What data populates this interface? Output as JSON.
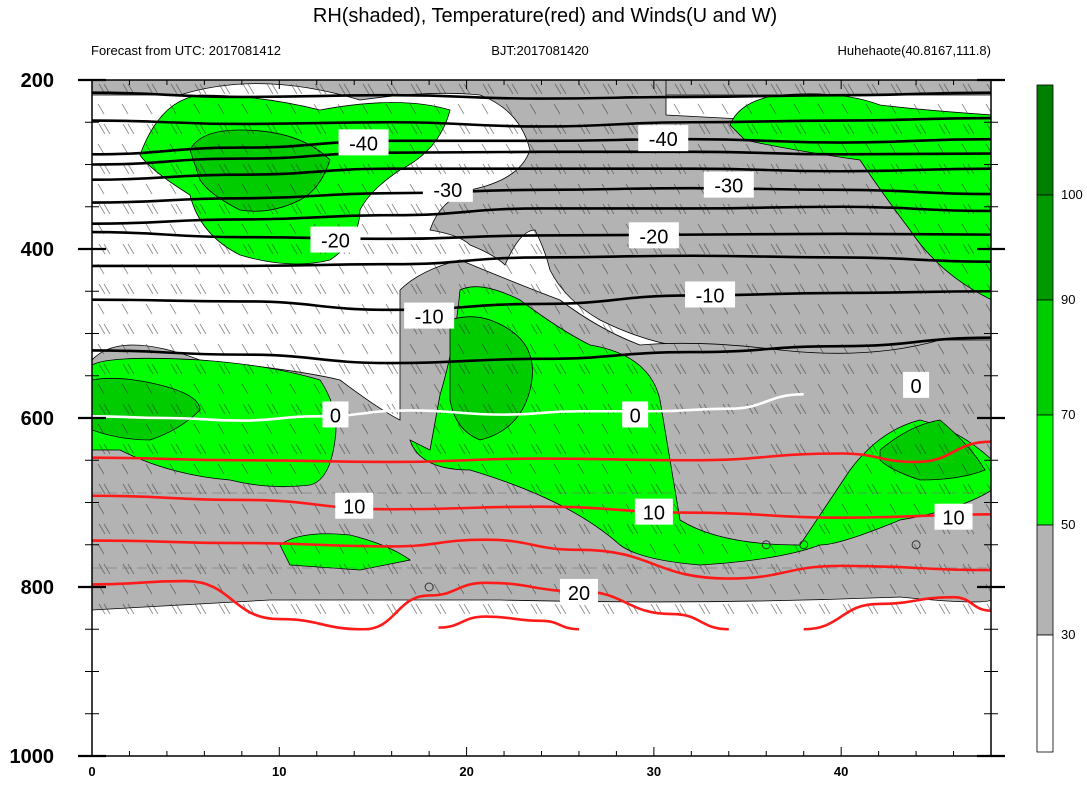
{
  "header": {
    "title": "RH(shaded), Temperature(red) and Winds(U and W)",
    "left_note": "Forecast from UTC: 2017081412",
    "center_note": "BJT:2017081420",
    "right_note": "Huhehaote(40.8167,111.8)"
  },
  "chart_data": {
    "type": "heatmap",
    "title": "RH(shaded), Temperature(red) and Winds(U and W)",
    "xlabel": "",
    "ylabel": "",
    "x_range": [
      0,
      48
    ],
    "y_range": [
      200,
      1000
    ],
    "y_reversed": true,
    "x_ticks": [
      0,
      10,
      20,
      30,
      40
    ],
    "y_ticks": [
      200,
      400,
      600,
      800,
      1000
    ],
    "colorbar": {
      "levels": [
        30,
        50,
        70,
        90,
        100
      ],
      "colors": [
        "#ffffff",
        "#b3b3b3",
        "#00ff00",
        "#00cc00",
        "#009900",
        "#007f00"
      ]
    },
    "temperature_labels": [
      {
        "text": "-40",
        "x": 14.5,
        "p": 275
      },
      {
        "text": "-40",
        "x": 30.5,
        "p": 270
      },
      {
        "text": "-30",
        "x": 19,
        "p": 330
      },
      {
        "text": "-30",
        "x": 34,
        "p": 325
      },
      {
        "text": "-20",
        "x": 13,
        "p": 390
      },
      {
        "text": "-20",
        "x": 30,
        "p": 385
      },
      {
        "text": "-10",
        "x": 18,
        "p": 480
      },
      {
        "text": "-10",
        "x": 33,
        "p": 455
      },
      {
        "text": "0",
        "x": 13,
        "p": 597
      },
      {
        "text": "0",
        "x": 29,
        "p": 597
      },
      {
        "text": "0",
        "x": 44,
        "p": 562
      },
      {
        "text": "10",
        "x": 14,
        "p": 705
      },
      {
        "text": "10",
        "x": 30,
        "p": 712
      },
      {
        "text": "10",
        "x": 46,
        "p": 718
      },
      {
        "text": "20",
        "x": 26,
        "p": 807
      }
    ],
    "isotherms_black": [
      {
        "value": -50,
        "x": [
          0,
          8,
          16,
          24,
          32,
          40,
          48
        ],
        "p": [
          215,
          220,
          218,
          222,
          220,
          218,
          215
        ]
      },
      {
        "value": -45,
        "x": [
          0,
          8,
          16,
          24,
          32,
          40,
          48
        ],
        "p": [
          248,
          252,
          250,
          255,
          250,
          248,
          245
        ]
      },
      {
        "value": -40,
        "x": [
          0,
          8,
          16,
          24,
          32,
          40,
          48
        ],
        "p": [
          288,
          280,
          272,
          272,
          270,
          274,
          270
        ]
      },
      {
        "value": -38,
        "x": [
          0,
          8,
          16,
          24,
          32,
          40,
          48
        ],
        "p": [
          300,
          293,
          286,
          285,
          285,
          288,
          287
        ]
      },
      {
        "value": -35,
        "x": [
          0,
          8,
          16,
          24,
          32,
          40,
          48
        ],
        "p": [
          318,
          312,
          305,
          305,
          305,
          308,
          305
        ]
      },
      {
        "value": -30,
        "x": [
          0,
          8,
          16,
          24,
          32,
          40,
          48
        ],
        "p": [
          345,
          340,
          334,
          330,
          328,
          330,
          335
        ]
      },
      {
        "value": -25,
        "x": [
          0,
          8,
          16,
          24,
          32,
          40,
          48
        ],
        "p": [
          370,
          365,
          360,
          352,
          352,
          350,
          355
        ]
      },
      {
        "value": -20,
        "x": [
          0,
          8,
          16,
          24,
          32,
          40,
          48
        ],
        "p": [
          380,
          386,
          388,
          384,
          383,
          382,
          383
        ]
      },
      {
        "value": -15,
        "x": [
          0,
          8,
          16,
          24,
          32,
          40,
          48
        ],
        "p": [
          420,
          420,
          418,
          410,
          408,
          410,
          415
        ]
      },
      {
        "value": -10,
        "x": [
          0,
          8,
          16,
          24,
          32,
          40,
          48
        ],
        "p": [
          460,
          462,
          472,
          465,
          455,
          452,
          450
        ]
      },
      {
        "value": -5,
        "x": [
          0,
          8,
          16,
          24,
          32,
          40,
          48
        ],
        "p": [
          520,
          525,
          535,
          530,
          522,
          515,
          505
        ]
      }
    ],
    "isotherm_zero": {
      "value": 0,
      "x": [
        0,
        4,
        8,
        12,
        17,
        22,
        26,
        30,
        34,
        38
      ],
      "p": [
        598,
        600,
        603,
        598,
        591,
        596,
        592,
        592,
        589,
        572
      ]
    },
    "isotherms_red": [
      {
        "value": 5,
        "x": [
          0,
          8,
          16,
          24,
          32,
          40,
          44,
          48
        ],
        "p": [
          647,
          650,
          652,
          648,
          650,
          642,
          652,
          628
        ]
      },
      {
        "value": 10,
        "x": [
          0,
          8,
          16,
          24,
          32,
          40,
          48
        ],
        "p": [
          692,
          697,
          708,
          705,
          712,
          718,
          714
        ]
      },
      {
        "value": 15,
        "x": [
          0,
          8,
          16,
          21,
          26,
          34,
          40,
          48
        ],
        "p": [
          745,
          748,
          752,
          744,
          756,
          790,
          775,
          780
        ]
      },
      {
        "value": 20,
        "x": [
          0,
          5,
          10,
          14.5,
          18,
          21,
          26,
          31,
          34
        ],
        "p": [
          797,
          793,
          838,
          850,
          810,
          795,
          805,
          832,
          850
        ]
      },
      {
        "value": 25,
        "x": [
          18.5,
          21,
          24,
          26
        ],
        "p": [
          848,
          835,
          840,
          850
        ]
      },
      {
        "value": 20.5,
        "x": [
          38,
          42,
          46,
          48
        ],
        "p": [
          850,
          820,
          812,
          828
        ]
      }
    ],
    "wind_circles": [
      {
        "x": 18,
        "p": 800
      },
      {
        "x": 36,
        "p": 750
      },
      {
        "x": 38,
        "p": 750
      },
      {
        "x": 44,
        "p": 750
      }
    ]
  },
  "colorbar_labels": [
    "30",
    "50",
    "70",
    "90",
    "100"
  ]
}
